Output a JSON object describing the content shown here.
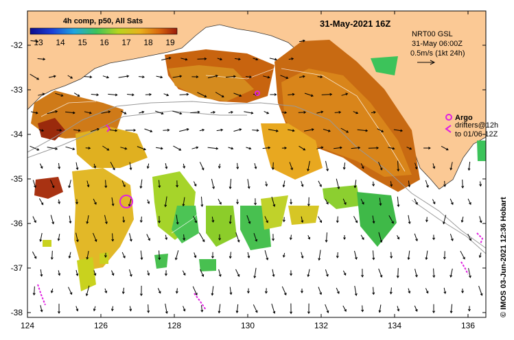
{
  "map": {
    "title": "31-May-2021 16Z",
    "product": "4h comp, p50, All Sats",
    "colorbar": {
      "ticks": [
        "13",
        "14",
        "15",
        "16",
        "17",
        "18",
        "19"
      ],
      "colors": [
        "#1a1aa8",
        "#1e4fd8",
        "#1fa6e0",
        "#3cc35a",
        "#b8d41e",
        "#e9a01d",
        "#b8360e"
      ]
    },
    "velocity_info": {
      "line1": "NRT00 GSL",
      "line2": "31-May 06:00Z",
      "line3": "0.5m/s (1kt 24h)"
    },
    "argo_legend": {
      "argo": "Argo",
      "drifters_line1": "drifters@12h",
      "drifters_line2": "to 01/06-12Z"
    },
    "credit": "© IMOS 03-Jun-2021 12:36 Hobart",
    "x_ticks": [
      "124",
      "126",
      "128",
      "130",
      "132",
      "134",
      "136"
    ],
    "y_ticks": [
      "-32",
      "-33",
      "-34",
      "-35",
      "-36",
      "-37",
      "-38"
    ],
    "colors": {
      "land": "#fbc995",
      "ocean": "#ffffff",
      "argo": "#e020e0"
    }
  }
}
